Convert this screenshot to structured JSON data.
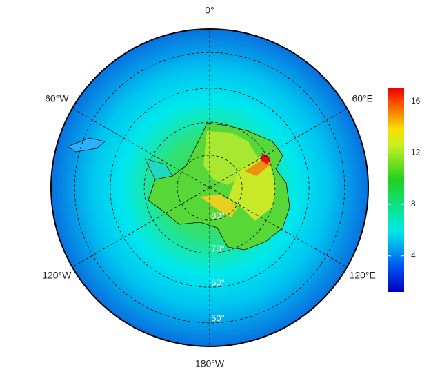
{
  "map": {
    "meridians": [
      {
        "value": 0,
        "label": "0°"
      },
      {
        "value": 60,
        "label": "60°E"
      },
      {
        "value": 120,
        "label": "120°E"
      },
      {
        "value": 180,
        "label": "180°W"
      },
      {
        "value": -120,
        "label": "120°W"
      },
      {
        "value": -60,
        "label": "60°W"
      }
    ],
    "parallels": [
      {
        "value": 80,
        "label": "80°"
      },
      {
        "value": 70,
        "label": "70°"
      },
      {
        "value": 60,
        "label": "60°"
      },
      {
        "value": 50,
        "label": "50°"
      }
    ],
    "colorbar": {
      "lim": [
        1.2,
        17
      ],
      "ticks": [
        4,
        8,
        12,
        16
      ]
    }
  }
}
